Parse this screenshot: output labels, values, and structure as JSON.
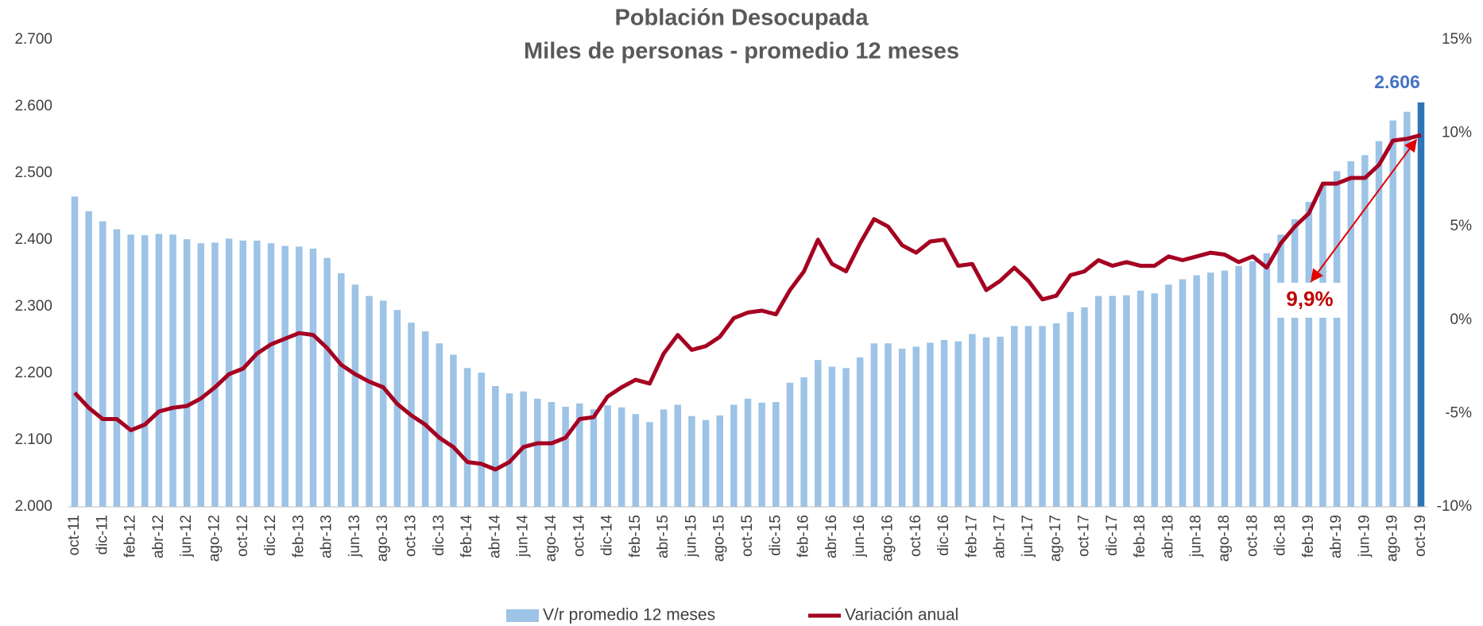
{
  "chart_data": {
    "type": "bar-line",
    "title": "Población Desocupada",
    "subtitle": "Miles de personas - promedio 12 meses",
    "categories": [
      "oct-11",
      null,
      "dic-11",
      null,
      "feb-12",
      null,
      "abr-12",
      null,
      "jun-12",
      null,
      "ago-12",
      null,
      "oct-12",
      null,
      "dic-12",
      null,
      "feb-13",
      null,
      "abr-13",
      null,
      "jun-13",
      null,
      "ago-13",
      null,
      "oct-13",
      null,
      "dic-13",
      null,
      "feb-14",
      null,
      "abr-14",
      null,
      "jun-14",
      null,
      "ago-14",
      null,
      "oct-14",
      null,
      "dic-14",
      null,
      "feb-15",
      null,
      "abr-15",
      null,
      "jun-15",
      null,
      "ago-15",
      null,
      "oct-15",
      null,
      "dic-15",
      null,
      "feb-16",
      null,
      "abr-16",
      null,
      "jun-16",
      null,
      "ago-16",
      null,
      "oct-16",
      null,
      "dic-16",
      null,
      "feb-17",
      null,
      "abr-17",
      null,
      "jun-17",
      null,
      "ago-17",
      null,
      "oct-17",
      null,
      "dic-17",
      null,
      "feb-18",
      null,
      "abr-18",
      null,
      "jun-18",
      null,
      "ago-18",
      null,
      "oct-18",
      null,
      "dic-18",
      null,
      "feb-19",
      null,
      "abr-19",
      null,
      "jun-19",
      null,
      "ago-19",
      null,
      "oct-19"
    ],
    "series": [
      {
        "name": "V/r promedio 12 meses",
        "type": "bar",
        "color": "#9dc3e6",
        "highlight_color": "#2e75b6",
        "label_color": "#4472c4",
        "values": [
          2465,
          2443,
          2428,
          2416,
          2408,
          2407,
          2409,
          2408,
          2401,
          2395,
          2396,
          2402,
          2399,
          2399,
          2395,
          2391,
          2390,
          2387,
          2373,
          2350,
          2333,
          2316,
          2309,
          2295,
          2276,
          2263,
          2245,
          2228,
          2208,
          2201,
          2181,
          2170,
          2173,
          2162,
          2157,
          2150,
          2155,
          2146,
          2152,
          2149,
          2139,
          2127,
          2146,
          2153,
          2136,
          2130,
          2137,
          2153,
          2162,
          2156,
          2157,
          2186,
          2194,
          2220,
          2210,
          2208,
          2224,
          2245,
          2245,
          2237,
          2240,
          2246,
          2250,
          2248,
          2259,
          2254,
          2255,
          2271,
          2271,
          2271,
          2275,
          2292,
          2299,
          2316,
          2316,
          2317,
          2324,
          2320,
          2333,
          2341,
          2347,
          2351,
          2354,
          2361,
          2368,
          2380,
          2408,
          2431,
          2457,
          2482,
          2503,
          2518,
          2527,
          2548,
          2579,
          2592,
          2606
        ],
        "value_labels": [
          null,
          null,
          null,
          null,
          null,
          null,
          null,
          null,
          null,
          null,
          null,
          null,
          null,
          null,
          null,
          null,
          null,
          null,
          null,
          null,
          null,
          null,
          null,
          null,
          null,
          null,
          null,
          null,
          null,
          null,
          null,
          null,
          null,
          null,
          null,
          null,
          null,
          null,
          null,
          null,
          null,
          null,
          null,
          null,
          null,
          null,
          null,
          null,
          null,
          null,
          null,
          null,
          null,
          null,
          null,
          null,
          null,
          null,
          null,
          null,
          null,
          null,
          null,
          null,
          null,
          null,
          null,
          null,
          null,
          null,
          null,
          null,
          null,
          null,
          null,
          null,
          null,
          null,
          null,
          null,
          null,
          null,
          null,
          null,
          null,
          null,
          null,
          null,
          null,
          null,
          null,
          null,
          null,
          null,
          null,
          null,
          "2.606"
        ]
      },
      {
        "name": "Variación anual",
        "type": "line",
        "axis": "y2",
        "color": "#a50021",
        "label_color": "#c00000",
        "values": [
          -3.9,
          -4.7,
          -5.3,
          -5.3,
          -5.9,
          -5.6,
          -4.9,
          -4.7,
          -4.6,
          -4.2,
          -3.6,
          -2.9,
          -2.6,
          -1.8,
          -1.3,
          -1.0,
          -0.7,
          -0.8,
          -1.5,
          -2.4,
          -2.9,
          -3.3,
          -3.6,
          -4.5,
          -5.1,
          -5.6,
          -6.3,
          -6.8,
          -7.6,
          -7.7,
          -8.0,
          -7.6,
          -6.8,
          -6.6,
          -6.6,
          -6.3,
          -5.3,
          -5.2,
          -4.1,
          -3.6,
          -3.2,
          -3.4,
          -1.8,
          -0.8,
          -1.6,
          -1.4,
          -0.9,
          0.1,
          0.4,
          0.5,
          0.3,
          1.6,
          2.6,
          4.3,
          3.0,
          2.6,
          4.1,
          5.4,
          5.0,
          4.0,
          3.6,
          4.2,
          4.3,
          2.9,
          3.0,
          1.6,
          2.1,
          2.8,
          2.1,
          1.1,
          1.3,
          2.4,
          2.6,
          3.2,
          2.9,
          3.1,
          2.9,
          2.9,
          3.4,
          3.2,
          3.4,
          3.6,
          3.5,
          3.1,
          3.4,
          2.8,
          4.1,
          5.0,
          5.7,
          7.3,
          7.3,
          7.6,
          7.6,
          8.3,
          9.6,
          9.7,
          9.9
        ],
        "value_labels": [
          null,
          null,
          null,
          null,
          null,
          null,
          null,
          null,
          null,
          null,
          null,
          null,
          null,
          null,
          null,
          null,
          null,
          null,
          null,
          null,
          null,
          null,
          null,
          null,
          null,
          null,
          null,
          null,
          null,
          null,
          null,
          null,
          null,
          null,
          null,
          null,
          null,
          null,
          null,
          null,
          null,
          null,
          null,
          null,
          null,
          null,
          null,
          null,
          null,
          null,
          null,
          null,
          null,
          null,
          null,
          null,
          null,
          null,
          null,
          null,
          null,
          null,
          null,
          null,
          null,
          null,
          null,
          null,
          null,
          null,
          null,
          null,
          null,
          null,
          null,
          null,
          null,
          null,
          null,
          null,
          null,
          null,
          null,
          null,
          null,
          null,
          null,
          null,
          null,
          null,
          null,
          null,
          null,
          null,
          null,
          null,
          "9,9%"
        ]
      }
    ],
    "ylim": [
      2000,
      2700
    ],
    "yticks": [
      {
        "value": 2000,
        "label": "2.000"
      },
      {
        "value": 2100,
        "label": "2.100"
      },
      {
        "value": 2200,
        "label": "2.200"
      },
      {
        "value": 2300,
        "label": "2.300"
      },
      {
        "value": 2400,
        "label": "2.400"
      },
      {
        "value": 2500,
        "label": "2.500"
      },
      {
        "value": 2600,
        "label": "2.600"
      },
      {
        "value": 2700,
        "label": "2.700"
      }
    ],
    "y2lim": [
      -10,
      15
    ],
    "y2ticks": [
      {
        "value": -10,
        "label": "-10%"
      },
      {
        "value": -5,
        "label": "-5%"
      },
      {
        "value": 0,
        "label": "0%"
      },
      {
        "value": 5,
        "label": "5%"
      },
      {
        "value": 10,
        "label": "10%"
      },
      {
        "value": 15,
        "label": "15%"
      }
    ],
    "grid": false,
    "legend": "bottom"
  }
}
